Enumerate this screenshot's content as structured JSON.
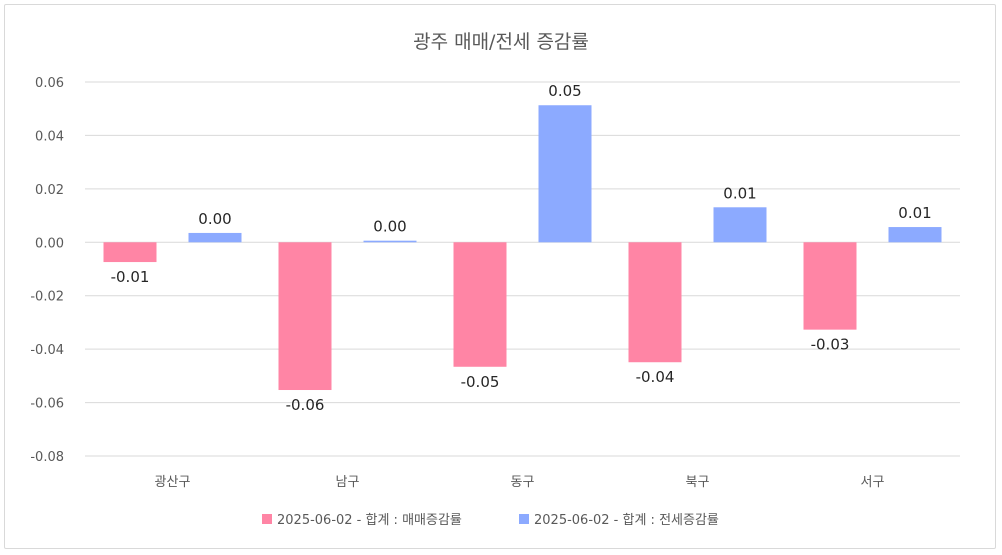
{
  "chart_data": {
    "type": "bar",
    "title": "광주 매매/전세 증감률",
    "categories": [
      "광산구",
      "남구",
      "동구",
      "북구",
      "서구"
    ],
    "series": [
      {
        "name": "2025-06-02 - 합계 : 매매증감률",
        "color": "#ff85a5",
        "values": [
          -0.0074,
          -0.0553,
          -0.0466,
          -0.0449,
          -0.0327
        ],
        "labels": [
          "-0.01",
          "-0.06",
          "-0.05",
          "-0.04",
          "-0.03"
        ]
      },
      {
        "name": "2025-06-02 - 합계 : 전세증감률",
        "color": "#8caaff",
        "values": [
          0.0035,
          0.0006,
          0.0513,
          0.0131,
          0.0057
        ],
        "labels": [
          "0.00",
          "0.00",
          "0.05",
          "0.01",
          "0.01"
        ]
      }
    ],
    "yticks": [
      "0.06",
      "0.04",
      "0.02",
      "0.00",
      "-0.02",
      "-0.04",
      "-0.06",
      "-0.08"
    ],
    "ylim": [
      -0.08,
      0.06
    ],
    "grid": true,
    "legend_position": "bottom"
  }
}
